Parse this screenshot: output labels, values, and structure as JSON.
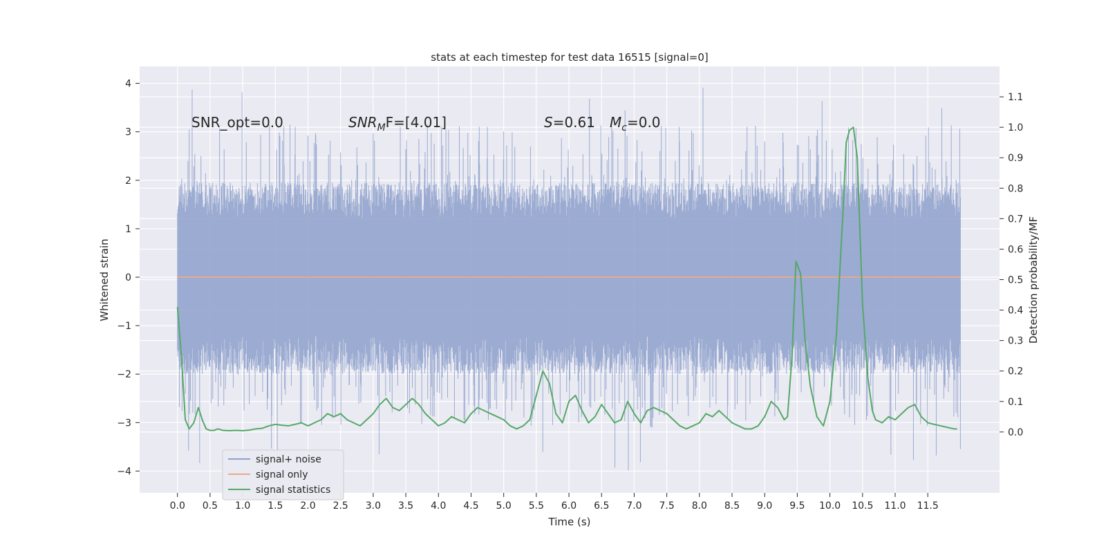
{
  "chart_data": {
    "type": "line",
    "title": "stats at each timestep for test data 16515 [signal=0]",
    "xlabel": "Time (s)",
    "ylabel": "Whitened strain",
    "ylabel_right": "Detection probability/MF",
    "xlim": [
      -0.58,
      12.6
    ],
    "ylim": [
      -4.45,
      4.35
    ],
    "ylim_right": [
      -0.2,
      1.2
    ],
    "x_ticks": [
      0.0,
      0.5,
      1.0,
      1.5,
      2.0,
      2.5,
      3.0,
      3.5,
      4.0,
      4.5,
      5.0,
      5.5,
      6.0,
      6.5,
      7.0,
      7.5,
      8.0,
      8.5,
      9.0,
      9.5,
      10.0,
      10.5,
      11.0,
      11.5
    ],
    "x_tick_labels": [
      "0.0",
      "0.5",
      "1.0",
      "1.5",
      "2.0",
      "2.5",
      "3.0",
      "3.5",
      "4.0",
      "4.5",
      "5.0",
      "5.5",
      "6.0",
      "6.5",
      "7.0",
      "7.5",
      "8.0",
      "8.5",
      "9.0",
      "9.5",
      "10.0",
      "10.5",
      "11.0",
      "11.5"
    ],
    "y_ticks": [
      4,
      3,
      2,
      1,
      0,
      -1,
      -2,
      -3,
      -4
    ],
    "y_tick_labels": [
      "4",
      "3",
      "2",
      "1",
      "0",
      "−1",
      "−2",
      "−3",
      "−4"
    ],
    "y_ticks_right": [
      1.1,
      1.0,
      0.9,
      0.8,
      0.7,
      0.6,
      0.5,
      0.4,
      0.3,
      0.2,
      0.1,
      0.0
    ],
    "y_tick_labels_right": [
      "1.1",
      "1.0",
      "0.9",
      "0.8",
      "0.7",
      "0.6",
      "0.5",
      "0.4",
      "0.3",
      "0.2",
      "0.1",
      "0.0"
    ],
    "grid": true,
    "legend_position": "lower-left",
    "annotations": {
      "snr_opt": "SNR_opt=0.0",
      "snr_mf_prefix": "SNR",
      "snr_mf_sub": "M",
      "snr_mf_suffix": "F=[4.01]",
      "s_prefix": "S",
      "s_value": "=0.61",
      "mc_prefix": "M",
      "mc_sub": "c",
      "mc_value": "=0.0"
    },
    "series": [
      {
        "name": "signal+ noise",
        "axis": "left",
        "color": "#8da0cb",
        "kind": "noise",
        "x_range": [
          0.0,
          12.0
        ],
        "approx_amplitude_core": 1.2,
        "approx_peak_max": 3.97,
        "approx_peak_min": -4.05
      },
      {
        "name": "signal only",
        "axis": "left",
        "color": "#e8a98a",
        "x": [
          0.0,
          12.0
        ],
        "values": [
          0.0,
          0.0
        ]
      },
      {
        "name": "signal statistics",
        "axis": "right",
        "color": "#55a868",
        "x": [
          0.0,
          0.06,
          0.12,
          0.18,
          0.25,
          0.32,
          0.38,
          0.44,
          0.5,
          0.56,
          0.62,
          0.7,
          0.8,
          0.9,
          1.0,
          1.1,
          1.2,
          1.3,
          1.4,
          1.5,
          1.6,
          1.7,
          1.8,
          1.9,
          2.0,
          2.1,
          2.2,
          2.3,
          2.4,
          2.5,
          2.6,
          2.7,
          2.8,
          2.9,
          3.0,
          3.1,
          3.2,
          3.3,
          3.4,
          3.5,
          3.6,
          3.7,
          3.8,
          3.9,
          4.0,
          4.1,
          4.2,
          4.3,
          4.4,
          4.5,
          4.6,
          4.7,
          4.8,
          4.9,
          5.0,
          5.1,
          5.2,
          5.3,
          5.4,
          5.5,
          5.6,
          5.7,
          5.8,
          5.9,
          6.0,
          6.1,
          6.2,
          6.3,
          6.4,
          6.5,
          6.6,
          6.7,
          6.8,
          6.9,
          7.0,
          7.1,
          7.2,
          7.3,
          7.4,
          7.5,
          7.6,
          7.7,
          7.8,
          7.9,
          8.0,
          8.1,
          8.2,
          8.3,
          8.4,
          8.5,
          8.6,
          8.7,
          8.8,
          8.9,
          9.0,
          9.1,
          9.2,
          9.3,
          9.35,
          9.42,
          9.48,
          9.55,
          9.62,
          9.7,
          9.8,
          9.9,
          10.0,
          10.1,
          10.2,
          10.25,
          10.3,
          10.36,
          10.42,
          10.5,
          10.58,
          10.65,
          10.7,
          10.8,
          10.9,
          11.0,
          11.1,
          11.2,
          11.3,
          11.4,
          11.5,
          11.6,
          11.7,
          11.8,
          11.9,
          11.95
        ],
        "values": [
          0.41,
          0.25,
          0.04,
          0.01,
          0.03,
          0.08,
          0.04,
          0.01,
          0.005,
          0.005,
          0.01,
          0.005,
          0.004,
          0.005,
          0.004,
          0.006,
          0.01,
          0.012,
          0.02,
          0.025,
          0.022,
          0.02,
          0.025,
          0.03,
          0.02,
          0.03,
          0.04,
          0.06,
          0.05,
          0.06,
          0.04,
          0.03,
          0.02,
          0.04,
          0.06,
          0.09,
          0.11,
          0.08,
          0.07,
          0.09,
          0.11,
          0.09,
          0.06,
          0.04,
          0.02,
          0.03,
          0.05,
          0.04,
          0.03,
          0.06,
          0.08,
          0.07,
          0.06,
          0.05,
          0.04,
          0.02,
          0.01,
          0.02,
          0.04,
          0.12,
          0.2,
          0.16,
          0.06,
          0.03,
          0.1,
          0.12,
          0.07,
          0.03,
          0.05,
          0.09,
          0.06,
          0.03,
          0.04,
          0.1,
          0.06,
          0.03,
          0.07,
          0.08,
          0.07,
          0.06,
          0.04,
          0.02,
          0.01,
          0.02,
          0.03,
          0.06,
          0.05,
          0.07,
          0.05,
          0.03,
          0.02,
          0.01,
          0.01,
          0.02,
          0.05,
          0.1,
          0.08,
          0.04,
          0.05,
          0.25,
          0.56,
          0.52,
          0.3,
          0.15,
          0.05,
          0.02,
          0.1,
          0.32,
          0.72,
          0.95,
          0.99,
          1.0,
          0.9,
          0.42,
          0.18,
          0.07,
          0.04,
          0.03,
          0.05,
          0.04,
          0.06,
          0.08,
          0.09,
          0.05,
          0.03,
          0.025,
          0.02,
          0.015,
          0.01,
          0.01
        ]
      }
    ]
  }
}
